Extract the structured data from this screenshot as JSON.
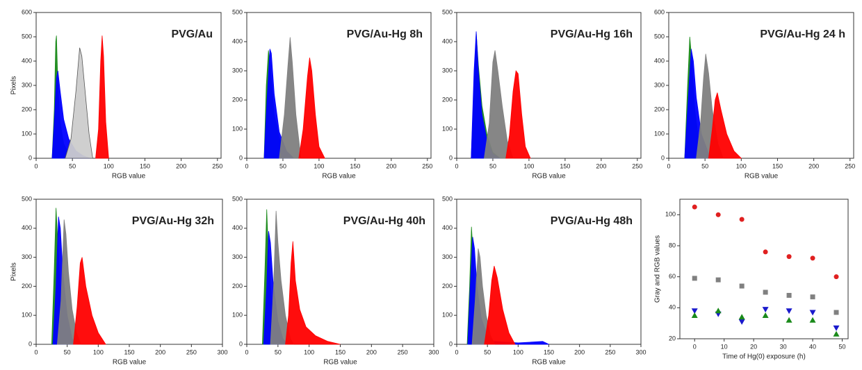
{
  "chart_data": [
    {
      "type": "area",
      "title": "PVG/Au",
      "xlabel": "RGB value",
      "ylabel": "Pixels",
      "xlim": [
        0,
        255
      ],
      "xticks": [
        0,
        50,
        100,
        150,
        200,
        250
      ],
      "ylim": [
        0,
        600
      ],
      "yticks": [
        0,
        100,
        200,
        300,
        400,
        500,
        600
      ],
      "series": [
        {
          "color": "#1a8a1a",
          "x": [
            22,
            25,
            27,
            28,
            30,
            33,
            38,
            45,
            55
          ],
          "values": [
            0,
            200,
            480,
            505,
            300,
            150,
            60,
            20,
            0
          ]
        },
        {
          "color": "#0000ff",
          "x": [
            22,
            25,
            28,
            30,
            33,
            38,
            45,
            55,
            65,
            75
          ],
          "values": [
            0,
            150,
            330,
            360,
            280,
            160,
            80,
            30,
            10,
            0
          ]
        },
        {
          "color": "#cccccc",
          "x": [
            40,
            48,
            55,
            60,
            63,
            68,
            73,
            78
          ],
          "values": [
            0,
            80,
            280,
            455,
            420,
            260,
            100,
            0
          ]
        },
        {
          "color": "#ff0000",
          "x": [
            82,
            86,
            89,
            91,
            93,
            96,
            100
          ],
          "values": [
            0,
            120,
            400,
            505,
            420,
            150,
            0
          ]
        }
      ]
    },
    {
      "type": "area",
      "title": "PVG/Au-Hg 8h",
      "xlabel": "RGB value",
      "xlim": [
        0,
        255
      ],
      "xticks": [
        0,
        50,
        100,
        150,
        200,
        250
      ],
      "ylim": [
        0,
        500
      ],
      "yticks": [
        0,
        100,
        200,
        300,
        400,
        500
      ],
      "series": [
        {
          "color": "#1a8a1a",
          "x": [
            24,
            27,
            30,
            33,
            38,
            45,
            55,
            65
          ],
          "values": [
            0,
            250,
            370,
            300,
            150,
            70,
            20,
            0
          ]
        },
        {
          "color": "#0000ff",
          "x": [
            24,
            28,
            32,
            34,
            38,
            45,
            55,
            65
          ],
          "values": [
            0,
            200,
            375,
            360,
            220,
            90,
            25,
            0
          ]
        },
        {
          "color": "#808080",
          "x": [
            45,
            52,
            57,
            60,
            63,
            68,
            75
          ],
          "values": [
            0,
            150,
            320,
            415,
            330,
            150,
            0
          ]
        },
        {
          "color": "#ff0000",
          "x": [
            72,
            78,
            84,
            87,
            90,
            95,
            100,
            108
          ],
          "values": [
            0,
            100,
            280,
            345,
            300,
            150,
            40,
            0
          ]
        }
      ]
    },
    {
      "type": "area",
      "title": "PVG/Au-Hg 16h",
      "xlabel": "RGB value",
      "xlim": [
        0,
        255
      ],
      "xticks": [
        0,
        50,
        100,
        150,
        200,
        250
      ],
      "ylim": [
        0,
        500
      ],
      "yticks": [
        0,
        100,
        200,
        300,
        400,
        500
      ],
      "series": [
        {
          "color": "#1a8a1a",
          "x": [
            20,
            24,
            27,
            30,
            35,
            42,
            50,
            60
          ],
          "values": [
            0,
            250,
            430,
            320,
            180,
            80,
            20,
            0
          ]
        },
        {
          "color": "#0000ff",
          "x": [
            20,
            24,
            27,
            30,
            35,
            42,
            50,
            60
          ],
          "values": [
            0,
            300,
            435,
            300,
            150,
            60,
            15,
            0
          ]
        },
        {
          "color": "#808080",
          "x": [
            38,
            45,
            50,
            53,
            57,
            63,
            70,
            78
          ],
          "values": [
            0,
            120,
            330,
            370,
            300,
            180,
            60,
            0
          ]
        },
        {
          "color": "#ff0000",
          "x": [
            68,
            73,
            78,
            82,
            85,
            90,
            95,
            102
          ],
          "values": [
            0,
            80,
            230,
            300,
            290,
            150,
            40,
            0
          ]
        }
      ]
    },
    {
      "type": "area",
      "title": "PVG/Au-Hg 24 h",
      "xlabel": "RGB value",
      "xlim": [
        0,
        255
      ],
      "xticks": [
        0,
        50,
        100,
        150,
        200,
        250
      ],
      "ylim": [
        0,
        600
      ],
      "yticks": [
        0,
        100,
        200,
        300,
        400,
        500,
        600
      ],
      "series": [
        {
          "color": "#1a8a1a",
          "x": [
            22,
            26,
            29,
            32,
            36,
            42,
            50
          ],
          "values": [
            0,
            300,
            500,
            400,
            200,
            60,
            0
          ]
        },
        {
          "color": "#0000ff",
          "x": [
            22,
            27,
            31,
            34,
            38,
            45,
            55,
            62
          ],
          "values": [
            0,
            250,
            450,
            400,
            250,
            100,
            20,
            0
          ]
        },
        {
          "color": "#808080",
          "x": [
            38,
            44,
            48,
            51,
            55,
            60,
            68,
            75
          ],
          "values": [
            0,
            150,
            330,
            430,
            350,
            200,
            60,
            0
          ]
        },
        {
          "color": "#ff0000",
          "x": [
            55,
            60,
            64,
            67,
            72,
            80,
            90,
            100
          ],
          "values": [
            0,
            120,
            240,
            270,
            200,
            100,
            30,
            0
          ]
        }
      ]
    },
    {
      "type": "area",
      "title": "PVG/Au-Hg 32h",
      "xlabel": "RGB value",
      "ylabel": "Pixels",
      "xlim": [
        0,
        300
      ],
      "xticks": [
        0,
        50,
        100,
        150,
        200,
        250,
        300
      ],
      "ylim": [
        0,
        500
      ],
      "yticks": [
        0,
        100,
        200,
        300,
        400,
        500
      ],
      "series": [
        {
          "color": "#1a8a1a",
          "x": [
            25,
            29,
            32,
            35,
            40,
            48,
            55
          ],
          "values": [
            0,
            250,
            470,
            350,
            150,
            40,
            0
          ]
        },
        {
          "color": "#0000ff",
          "x": [
            27,
            32,
            36,
            39,
            43,
            50,
            58,
            65
          ],
          "values": [
            0,
            200,
            440,
            400,
            250,
            100,
            20,
            0
          ]
        },
        {
          "color": "#808080",
          "x": [
            34,
            40,
            45,
            48,
            52,
            58,
            65,
            72
          ],
          "values": [
            0,
            150,
            430,
            380,
            250,
            120,
            40,
            0
          ]
        },
        {
          "color": "#ff0000",
          "x": [
            60,
            66,
            71,
            74,
            80,
            90,
            100,
            112
          ],
          "values": [
            0,
            130,
            280,
            300,
            200,
            100,
            40,
            0
          ]
        }
      ]
    },
    {
      "type": "area",
      "title": "PVG/Au-Hg 40h",
      "xlabel": "RGB value",
      "xlim": [
        0,
        300
      ],
      "xticks": [
        0,
        50,
        100,
        150,
        200,
        250,
        300
      ],
      "ylim": [
        0,
        500
      ],
      "yticks": [
        0,
        100,
        200,
        300,
        400,
        500
      ],
      "series": [
        {
          "color": "#1a8a1a",
          "x": [
            25,
            29,
            32,
            35,
            40,
            48,
            55
          ],
          "values": [
            0,
            250,
            465,
            300,
            150,
            40,
            0
          ]
        },
        {
          "color": "#0000ff",
          "x": [
            27,
            32,
            35,
            38,
            42,
            50,
            58,
            65
          ],
          "values": [
            0,
            200,
            390,
            350,
            220,
            80,
            20,
            0
          ]
        },
        {
          "color": "#808080",
          "x": [
            38,
            43,
            47,
            50,
            55,
            62,
            70,
            75
          ],
          "values": [
            0,
            200,
            460,
            350,
            220,
            100,
            20,
            0
          ]
        },
        {
          "color": "#ff0000",
          "x": [
            62,
            67,
            71,
            74,
            78,
            85,
            95,
            110,
            130,
            150
          ],
          "values": [
            0,
            100,
            280,
            355,
            220,
            120,
            60,
            30,
            10,
            0
          ]
        }
      ]
    },
    {
      "type": "area",
      "title": "PVG/Au-Hg 48h",
      "xlabel": "RGB value",
      "xlim": [
        0,
        300
      ],
      "xticks": [
        0,
        50,
        100,
        150,
        200,
        250,
        300
      ],
      "ylim": [
        0,
        500
      ],
      "yticks": [
        0,
        100,
        200,
        300,
        400,
        500
      ],
      "series": [
        {
          "color": "#1a8a1a",
          "x": [
            17,
            21,
            24,
            27,
            32,
            40,
            48
          ],
          "values": [
            0,
            200,
            405,
            300,
            120,
            30,
            0
          ]
        },
        {
          "color": "#0000ff",
          "x": [
            18,
            22,
            26,
            29,
            33,
            40,
            50,
            60,
            100,
            140,
            150
          ],
          "values": [
            0,
            200,
            370,
            330,
            200,
            90,
            30,
            10,
            5,
            10,
            0
          ]
        },
        {
          "color": "#808080",
          "x": [
            25,
            30,
            35,
            38,
            42,
            48,
            55,
            62
          ],
          "values": [
            0,
            150,
            330,
            300,
            200,
            100,
            30,
            0
          ]
        },
        {
          "color": "#ff0000",
          "x": [
            45,
            52,
            57,
            61,
            66,
            75,
            85,
            95
          ],
          "values": [
            0,
            100,
            220,
            270,
            230,
            120,
            40,
            0
          ]
        }
      ]
    },
    {
      "type": "scatter",
      "xlabel": "Time of Hg(0) exposure (h)",
      "ylabel": "Gray and RGB values",
      "xlim": [
        -5,
        52
      ],
      "xticks": [
        0,
        10,
        20,
        30,
        40,
        50
      ],
      "ylim": [
        20,
        110
      ],
      "yticks": [
        20,
        40,
        60,
        80,
        100
      ],
      "x": [
        0,
        8,
        16,
        24,
        32,
        40,
        48
      ],
      "series": [
        {
          "color": "#e02020",
          "marker": "circle",
          "values": [
            105,
            100,
            97,
            76,
            73,
            72,
            60
          ]
        },
        {
          "color": "#808080",
          "marker": "square",
          "values": [
            59,
            58,
            54,
            50,
            48,
            47,
            37
          ]
        },
        {
          "color": "#1a1acc",
          "marker": "triangle-down",
          "values": [
            38,
            36,
            31,
            39,
            38,
            37,
            27
          ]
        },
        {
          "color": "#1a8a1a",
          "marker": "triangle-up",
          "values": [
            35,
            38,
            34,
            35,
            32,
            32,
            23
          ]
        }
      ]
    }
  ]
}
